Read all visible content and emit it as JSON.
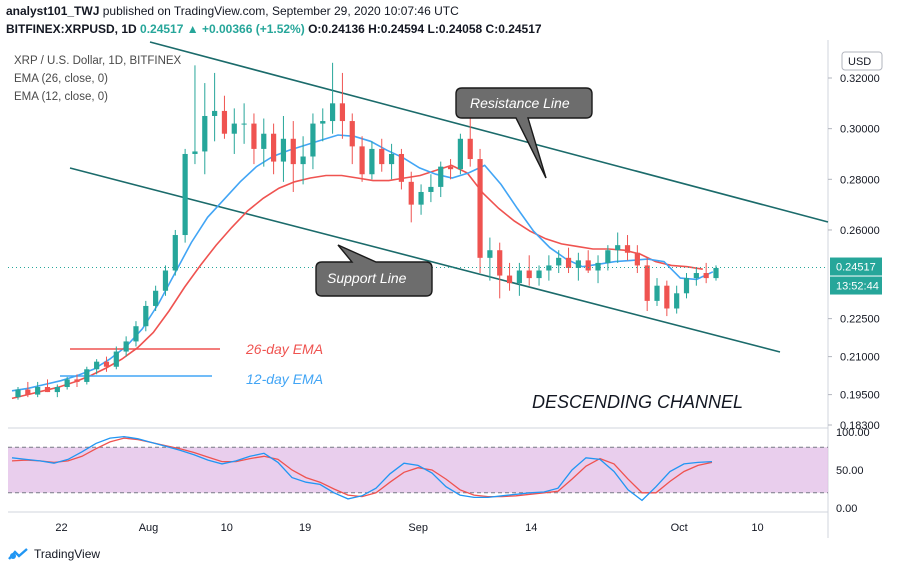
{
  "header": {
    "line1_user": "analyst101_TWJ",
    "line1_text": "published on TradingView.com, September 29, 2020 10:07:46 UTC",
    "line2_symbol": "BITFINEX:XRPUSD, 1D",
    "line2_last": "0.24517",
    "line2_change": "▲ +0.00366 (+1.52%)",
    "line2_ohlc": "O:0.24136 H:0.24594 L:0.24058 C:0.24517"
  },
  "legend": {
    "title": "XRP / U.S. Dollar, 1D, BITFINEX",
    "ema26": "EMA (26, close, 0)",
    "ema12": "EMA (12, close, 0)"
  },
  "currency": "USD",
  "current_price_label": "0.24517",
  "countdown_label": "13:52:44",
  "footer_brand": "TradingView",
  "colors": {
    "up": "#26a69a",
    "down": "#ef5350",
    "ema26": "#ef5350",
    "ema12": "#42a5f5",
    "channel": "#1b6b6b",
    "stoch_k": "#2196f3",
    "stoch_d": "#ef5350",
    "stoch_band": "#e1bee7"
  },
  "chart_data": {
    "type": "candlestick",
    "y_ticks": [
      "0.32000",
      "0.30000",
      "0.28000",
      "0.26000",
      "0.22500",
      "0.21000",
      "0.19500",
      "0.18300"
    ],
    "x_ticks": [
      "22",
      "Aug",
      "10",
      "19",
      "Sep",
      "14",
      "Oct",
      "10"
    ],
    "ylim": [
      0.183,
      0.335
    ],
    "candles_ohlc": [
      [
        0.194,
        0.198,
        0.193,
        0.197
      ],
      [
        0.197,
        0.2,
        0.194,
        0.195
      ],
      [
        0.195,
        0.2,
        0.194,
        0.198
      ],
      [
        0.198,
        0.201,
        0.196,
        0.196
      ],
      [
        0.196,
        0.199,
        0.194,
        0.198
      ],
      [
        0.198,
        0.202,
        0.197,
        0.201
      ],
      [
        0.201,
        0.203,
        0.198,
        0.2
      ],
      [
        0.2,
        0.206,
        0.199,
        0.205
      ],
      [
        0.205,
        0.209,
        0.203,
        0.208
      ],
      [
        0.208,
        0.21,
        0.204,
        0.206
      ],
      [
        0.206,
        0.214,
        0.205,
        0.212
      ],
      [
        0.212,
        0.218,
        0.21,
        0.216
      ],
      [
        0.216,
        0.224,
        0.214,
        0.222
      ],
      [
        0.222,
        0.232,
        0.22,
        0.23
      ],
      [
        0.23,
        0.238,
        0.228,
        0.236
      ],
      [
        0.236,
        0.246,
        0.234,
        0.244
      ],
      [
        0.244,
        0.26,
        0.242,
        0.258
      ],
      [
        0.258,
        0.292,
        0.255,
        0.29
      ],
      [
        0.29,
        0.325,
        0.286,
        0.291
      ],
      [
        0.291,
        0.318,
        0.282,
        0.305
      ],
      [
        0.305,
        0.322,
        0.295,
        0.307
      ],
      [
        0.307,
        0.313,
        0.296,
        0.298
      ],
      [
        0.298,
        0.308,
        0.29,
        0.302
      ],
      [
        0.302,
        0.31,
        0.294,
        0.302
      ],
      [
        0.302,
        0.306,
        0.286,
        0.292
      ],
      [
        0.292,
        0.304,
        0.285,
        0.298
      ],
      [
        0.298,
        0.302,
        0.282,
        0.287
      ],
      [
        0.287,
        0.305,
        0.279,
        0.296
      ],
      [
        0.296,
        0.303,
        0.275,
        0.286
      ],
      [
        0.286,
        0.297,
        0.278,
        0.289
      ],
      [
        0.289,
        0.306,
        0.284,
        0.302
      ],
      [
        0.302,
        0.308,
        0.295,
        0.303
      ],
      [
        0.303,
        0.326,
        0.298,
        0.31
      ],
      [
        0.31,
        0.322,
        0.296,
        0.303
      ],
      [
        0.303,
        0.306,
        0.286,
        0.293
      ],
      [
        0.293,
        0.297,
        0.279,
        0.282
      ],
      [
        0.282,
        0.295,
        0.28,
        0.292
      ],
      [
        0.292,
        0.296,
        0.283,
        0.286
      ],
      [
        0.286,
        0.294,
        0.28,
        0.29
      ],
      [
        0.29,
        0.292,
        0.276,
        0.279
      ],
      [
        0.279,
        0.283,
        0.263,
        0.27
      ],
      [
        0.27,
        0.278,
        0.266,
        0.275
      ],
      [
        0.275,
        0.282,
        0.271,
        0.277
      ],
      [
        0.277,
        0.287,
        0.273,
        0.285
      ],
      [
        0.285,
        0.288,
        0.28,
        0.284
      ],
      [
        0.284,
        0.298,
        0.282,
        0.296
      ],
      [
        0.296,
        0.306,
        0.285,
        0.288
      ],
      [
        0.288,
        0.292,
        0.243,
        0.249
      ],
      [
        0.249,
        0.257,
        0.24,
        0.252
      ],
      [
        0.252,
        0.255,
        0.233,
        0.242
      ],
      [
        0.242,
        0.247,
        0.236,
        0.239
      ],
      [
        0.239,
        0.247,
        0.234,
        0.244
      ],
      [
        0.244,
        0.25,
        0.238,
        0.241
      ],
      [
        0.241,
        0.246,
        0.238,
        0.244
      ],
      [
        0.244,
        0.25,
        0.24,
        0.246
      ],
      [
        0.246,
        0.252,
        0.243,
        0.249
      ],
      [
        0.249,
        0.253,
        0.243,
        0.245
      ],
      [
        0.245,
        0.251,
        0.24,
        0.248
      ],
      [
        0.248,
        0.252,
        0.243,
        0.244
      ],
      [
        0.244,
        0.25,
        0.239,
        0.247
      ],
      [
        0.247,
        0.254,
        0.244,
        0.252
      ],
      [
        0.252,
        0.259,
        0.247,
        0.254
      ],
      [
        0.254,
        0.258,
        0.248,
        0.251
      ],
      [
        0.251,
        0.254,
        0.243,
        0.246
      ],
      [
        0.246,
        0.249,
        0.228,
        0.232
      ],
      [
        0.232,
        0.241,
        0.23,
        0.238
      ],
      [
        0.238,
        0.24,
        0.226,
        0.229
      ],
      [
        0.229,
        0.238,
        0.227,
        0.235
      ],
      [
        0.235,
        0.243,
        0.233,
        0.241
      ],
      [
        0.241,
        0.245,
        0.238,
        0.243
      ],
      [
        0.243,
        0.247,
        0.239,
        0.241
      ],
      [
        0.241,
        0.246,
        0.24,
        0.245
      ]
    ],
    "ema12_values": [
      0.1965,
      0.1975,
      0.199,
      0.2005,
      0.2025,
      0.205,
      0.209,
      0.214,
      0.221,
      0.231,
      0.243,
      0.255,
      0.265,
      0.272,
      0.279,
      0.285,
      0.289,
      0.2915,
      0.2935,
      0.2955,
      0.2975,
      0.297,
      0.295,
      0.2915,
      0.2885,
      0.2845,
      0.282,
      0.2805,
      0.2825,
      0.2855,
      0.278,
      0.2685,
      0.2595,
      0.253,
      0.2485,
      0.2455,
      0.2465,
      0.2475,
      0.248,
      0.2485,
      0.2475,
      0.241,
      0.2405,
      0.2435
    ],
    "ema26_values": [
      0.1935,
      0.195,
      0.1965,
      0.198,
      0.2,
      0.2025,
      0.2055,
      0.209,
      0.2135,
      0.2195,
      0.228,
      0.2375,
      0.246,
      0.254,
      0.261,
      0.2675,
      0.2725,
      0.2765,
      0.279,
      0.2805,
      0.2815,
      0.2815,
      0.2805,
      0.2795,
      0.2795,
      0.2805,
      0.2815,
      0.2835,
      0.2855,
      0.2825,
      0.2745,
      0.2685,
      0.2635,
      0.2595,
      0.2565,
      0.2545,
      0.2535,
      0.2525,
      0.2525,
      0.252,
      0.2505,
      0.2475,
      0.246,
      0.2455,
      0.2445
    ],
    "stoch_ylim": [
      0,
      100
    ],
    "stoch_ticks": [
      "100.00",
      "50.00",
      "0.00"
    ],
    "stoch_k": [
      66,
      64,
      62,
      59,
      64,
      74,
      85,
      92,
      94,
      91,
      86,
      81,
      76,
      70,
      63,
      58,
      62,
      68,
      72,
      60,
      40,
      34,
      31,
      20,
      12,
      16,
      26,
      45,
      59,
      56,
      46,
      28,
      17,
      14,
      14,
      16,
      18,
      20,
      21,
      26,
      50,
      66,
      64,
      48,
      24,
      10,
      28,
      48,
      58,
      60,
      61
    ],
    "stoch_d": [
      62,
      63,
      62,
      60,
      62,
      68,
      78,
      87,
      92,
      90,
      86,
      82,
      78,
      73,
      67,
      61,
      61,
      65,
      68,
      64,
      50,
      40,
      34,
      25,
      17,
      15,
      20,
      34,
      47,
      53,
      50,
      38,
      24,
      17,
      15,
      15,
      16,
      18,
      20,
      22,
      38,
      55,
      65,
      58,
      38,
      20,
      20,
      35,
      48,
      56,
      60
    ],
    "annotations": [
      "Resistance Line",
      "Support Line",
      "26-day EMA",
      "12-day EMA",
      "DESCENDING CHANNEL"
    ]
  }
}
